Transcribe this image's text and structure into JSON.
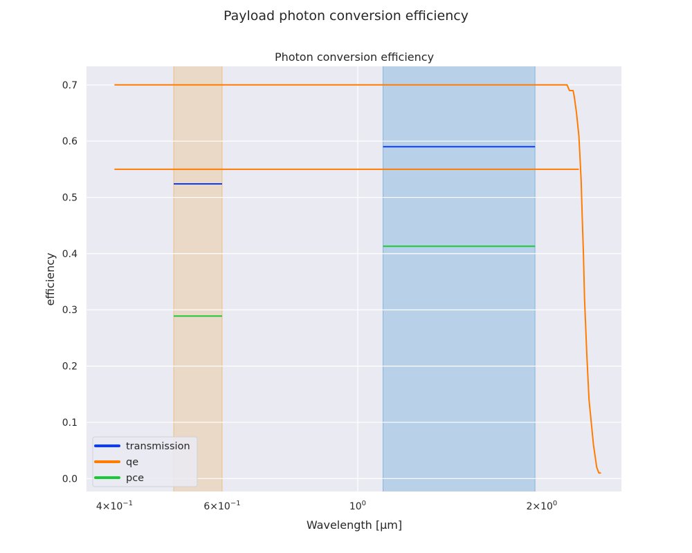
{
  "figure_title": "Payload photon conversion efficiency",
  "chart_data": {
    "type": "line",
    "title": "Photon conversion efficiency",
    "xlabel": "Wavelength [μm]",
    "ylabel": "efficiency",
    "xscale": "log",
    "xlim": [
      0.36,
      2.7
    ],
    "ylim": [
      -0.023,
      0.733
    ],
    "grid": true,
    "legend_position": "lower-left",
    "x_ticks": [
      {
        "value": 0.4,
        "mantissa": "4",
        "exponent": "−1"
      },
      {
        "value": 0.6,
        "mantissa": "6",
        "exponent": "−1"
      },
      {
        "value": 1.0,
        "mantissa": "",
        "exponent": "0"
      },
      {
        "value": 2.0,
        "mantissa": "2",
        "exponent": "0"
      }
    ],
    "y_ticks": [
      0.0,
      0.1,
      0.2,
      0.3,
      0.4,
      0.5,
      0.6,
      0.7
    ],
    "bands": [
      {
        "x0": 0.5,
        "x1": 0.6,
        "color": "#f0a030",
        "opacity": 0.22
      },
      {
        "x0": 1.1,
        "x1": 1.95,
        "color": "#3b8fd0",
        "opacity": 0.28
      }
    ],
    "series": [
      {
        "name": "transmission",
        "color": "#0a3cff",
        "segments": [
          {
            "x": [
              0.5,
              0.6
            ],
            "y": [
              0.524,
              0.524
            ]
          },
          {
            "x": [
              1.1,
              1.95
            ],
            "y": [
              0.59,
              0.59
            ]
          }
        ]
      },
      {
        "name": "qe",
        "color": "#ff7c00",
        "segments": [
          {
            "x": [
              0.4,
              2.2,
              2.22,
              2.25,
              2.26,
              2.28,
              2.3,
              2.31,
              2.32,
              2.33,
              2.34,
              2.35,
              2.37,
              2.39,
              2.41,
              2.43,
              2.46,
              2.48,
              2.5
            ],
            "y": [
              0.7,
              0.7,
              0.69,
              0.69,
              0.68,
              0.65,
              0.61,
              0.57,
              0.53,
              0.46,
              0.4,
              0.32,
              0.22,
              0.14,
              0.1,
              0.06,
              0.02,
              0.01,
              0.01
            ]
          },
          {
            "x": [
              0.4,
              2.3
            ],
            "y": [
              0.55,
              0.55
            ]
          }
        ]
      },
      {
        "name": "pce",
        "color": "#1ac938",
        "segments": [
          {
            "x": [
              0.5,
              0.6
            ],
            "y": [
              0.289,
              0.289
            ]
          },
          {
            "x": [
              1.1,
              1.95
            ],
            "y": [
              0.413,
              0.413
            ]
          }
        ]
      }
    ]
  }
}
